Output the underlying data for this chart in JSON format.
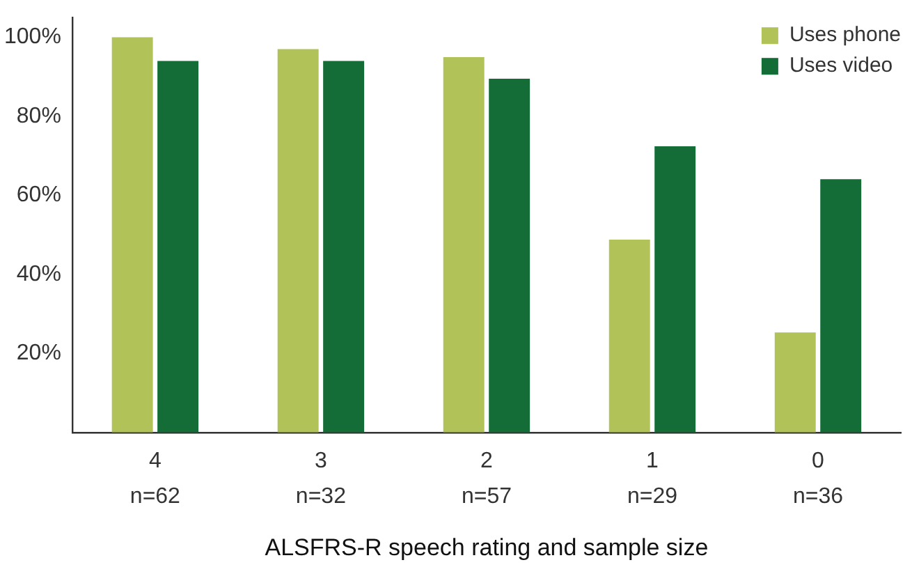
{
  "chart_data": {
    "type": "bar",
    "xlabel": "ALSFRS-R speech rating and sample size",
    "categories": [
      "4\nn=62",
      "3\nn=32",
      "2\nn=57",
      "1\nn=29",
      "0\nn=36"
    ],
    "series": [
      {
        "name": "Uses phone",
        "color": "#b0c258",
        "values": [
          100,
          97,
          95,
          48.8,
          25.3
        ]
      },
      {
        "name": "Uses video",
        "color": "#146c37",
        "values": [
          94,
          94,
          89.5,
          72.4,
          64.1
        ]
      }
    ],
    "ylim": [
      0,
      105
    ],
    "yticks": [
      {
        "value": 20,
        "label": "20%"
      },
      {
        "value": 40,
        "label": "40%"
      },
      {
        "value": 60,
        "label": "60%"
      },
      {
        "value": 80,
        "label": "80%"
      },
      {
        "value": 100,
        "label": "100%"
      }
    ],
    "grid": false,
    "legend": "top right"
  }
}
